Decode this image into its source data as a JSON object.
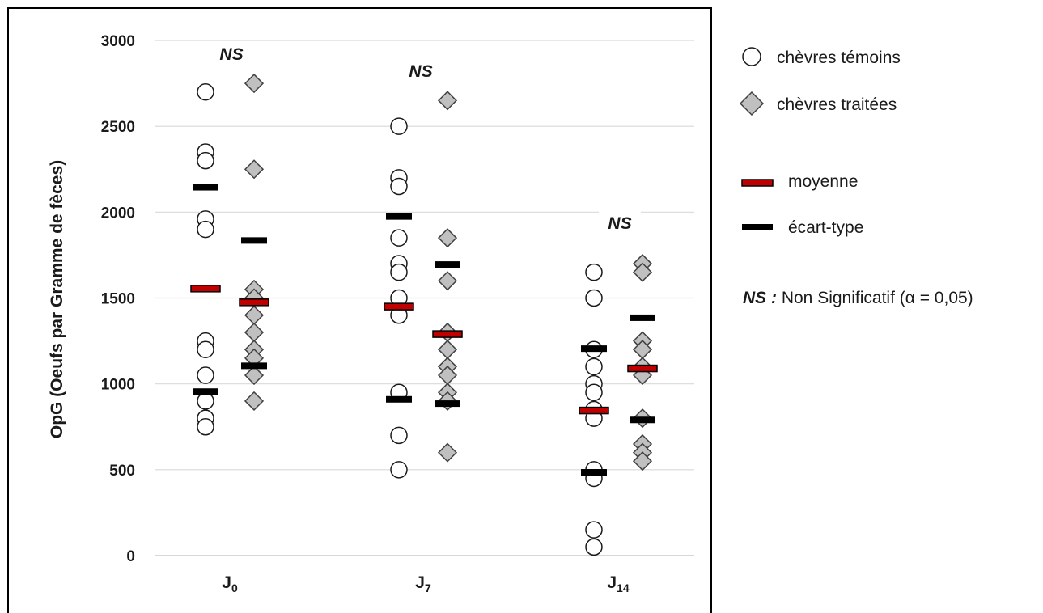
{
  "chart_data": {
    "type": "scatter",
    "ylabel": "OpG (Oeufs par Gramme de fèces)",
    "xlabel": "",
    "ylim": [
      0,
      3000
    ],
    "yticks": [
      0,
      500,
      1000,
      1500,
      2000,
      2500,
      3000
    ],
    "grid": true,
    "legend_position": "right",
    "categories": [
      {
        "main": "J",
        "sub": "0"
      },
      {
        "main": "J",
        "sub": "7"
      },
      {
        "main": "J",
        "sub": "14"
      }
    ],
    "annotations": [
      "NS",
      "NS",
      "NS"
    ],
    "series": [
      {
        "name": "chèvres témoins",
        "marker": "circle",
        "color": "#ffffff",
        "values": [
          [
            2700,
            2350,
            2300,
            1960,
            1900,
            1250,
            1200,
            1050,
            900,
            800,
            750
          ],
          [
            2500,
            2200,
            2150,
            1850,
            1700,
            1650,
            1500,
            1400,
            950,
            700,
            500
          ],
          [
            1650,
            1500,
            1200,
            1100,
            1000,
            950,
            850,
            800,
            500,
            450,
            150,
            50
          ]
        ],
        "mean": [
          1555,
          1450,
          845
        ],
        "sd_low": [
          955,
          910,
          485
        ],
        "sd_high": [
          2145,
          1975,
          1205
        ]
      },
      {
        "name": "chèvres traitées",
        "marker": "diamond",
        "color": "#c0c0c0",
        "values": [
          [
            2750,
            2250,
            1550,
            1500,
            1400,
            1300,
            1200,
            1150,
            1050,
            900
          ],
          [
            2650,
            1850,
            1600,
            1300,
            1200,
            1100,
            1050,
            950,
            900,
            600
          ],
          [
            1700,
            1650,
            1250,
            1200,
            1100,
            1050,
            800,
            650,
            600,
            550
          ]
        ],
        "mean": [
          1475,
          1290,
          1090
        ],
        "sd_low": [
          1105,
          885,
          790
        ],
        "sd_high": [
          1835,
          1695,
          1385
        ]
      }
    ],
    "colors": {
      "mean": "#c00000",
      "sd": "#000000"
    }
  },
  "legend": {
    "items": [
      {
        "key": "control",
        "label": "chèvres témoins"
      },
      {
        "key": "treated",
        "label": "chèvres traitées"
      },
      {
        "key": "mean",
        "label": "moyenne"
      },
      {
        "key": "sd",
        "label": "écart-type"
      }
    ],
    "note_prefix": "NS :",
    "note_text": " Non Significatif (α = 0,05)"
  }
}
